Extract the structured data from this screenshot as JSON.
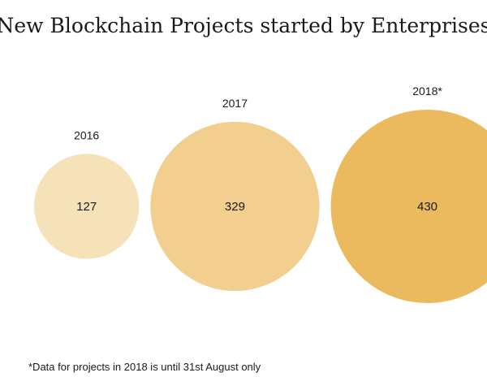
{
  "chart_data": {
    "type": "bubble",
    "title": "New Blockchain Projects started by Enterprises",
    "categories": [
      "2016",
      "2017",
      "2018*"
    ],
    "values": [
      127,
      329,
      430
    ],
    "colors": [
      "#f6e2b9",
      "#f2ce8f",
      "#ebba5e"
    ],
    "legend": "none",
    "grid": false,
    "footnote": "*Data for projects in 2018 is until 31st August only"
  }
}
